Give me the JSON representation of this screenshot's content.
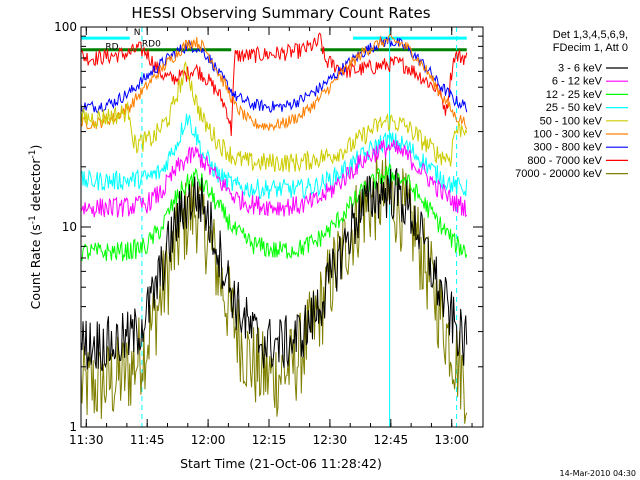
{
  "chart_data": {
    "type": "line",
    "title": "HESSI Observing Summary Count Rates",
    "xlabel": "Start Time (21-Oct-06 11:28:42)",
    "ylabel_main": "Count Rate (s",
    "ylabel_exp": "-1",
    "ylabel_mid": " detector",
    "ylabel_exp2": "-1",
    "ylabel_end": ")",
    "yscale": "log",
    "ylim": [
      1,
      100
    ],
    "xlim_minutes": [
      0,
      99
    ],
    "x_tick_labels": [
      "11:30",
      "11:45",
      "12:00",
      "12:15",
      "12:30",
      "12:45",
      "13:00"
    ],
    "x_tick_minutes": [
      1.3,
      16.3,
      31.3,
      46.3,
      61.3,
      76.3,
      91.3
    ],
    "y_tick_labels": [
      "1",
      "10",
      "100"
    ],
    "y_tick_values": [
      1,
      10,
      100
    ],
    "legend_header": [
      "Det 1,3,4,5,6,9,",
      "FDecim 1, Att 0"
    ],
    "legend_placement": "right",
    "grid": false,
    "annotations": [
      {
        "text": "RD0",
        "minute": 15,
        "value": 80
      },
      {
        "text": "RD",
        "minute": 6,
        "value": 77
      },
      {
        "text": "N",
        "minute": 13,
        "value": 91
      }
    ],
    "timestamp": "14-Mar-2010 04:30",
    "series": [
      {
        "name": "3 - 6 keV",
        "color": "#000000",
        "x": [
          0,
          5,
          8,
          10,
          12,
          14,
          16,
          18,
          20,
          22,
          24,
          26,
          28,
          29,
          30,
          32,
          34,
          36,
          38,
          40,
          42,
          44,
          46,
          48,
          50,
          52,
          54,
          56,
          58,
          60,
          62,
          64,
          66,
          68,
          70,
          72,
          74,
          76,
          78,
          80,
          82,
          84,
          86,
          88,
          90,
          92,
          94,
          95
        ],
        "values": [
          2.6,
          2.6,
          2.6,
          2.7,
          2.8,
          3.0,
          3.6,
          4.6,
          6.2,
          8.5,
          11.0,
          13.0,
          14.3,
          14.0,
          13.0,
          10.0,
          7.5,
          5.5,
          4.2,
          3.5,
          3.0,
          2.7,
          2.6,
          2.6,
          2.6,
          2.7,
          2.9,
          3.2,
          3.8,
          4.6,
          5.8,
          7.3,
          9.2,
          11.3,
          13.0,
          14.3,
          15.0,
          15.0,
          14.5,
          13.0,
          11.0,
          8.5,
          6.5,
          5.0,
          4.0,
          3.2,
          2.7,
          2.6
        ]
      },
      {
        "name": "6 - 12 keV",
        "color": "#ff00ff",
        "x": [
          0,
          8,
          12,
          16,
          20,
          24,
          28,
          30,
          34,
          38,
          42,
          48,
          54,
          58,
          62,
          66,
          70,
          74,
          76,
          80,
          84,
          88,
          92,
          95
        ],
        "values": [
          12.5,
          12.5,
          12.6,
          13.0,
          15.0,
          20.0,
          23.5,
          21.5,
          17.0,
          14.0,
          13.0,
          12.6,
          12.8,
          13.5,
          15.5,
          18.5,
          22.0,
          24.5,
          25.0,
          23.0,
          19.0,
          15.5,
          13.2,
          12.5
        ]
      },
      {
        "name": "12 - 25 keV",
        "color": "#00ff00",
        "x": [
          0,
          8,
          12,
          16,
          20,
          24,
          28,
          30,
          34,
          38,
          42,
          48,
          54,
          58,
          62,
          66,
          70,
          74,
          76,
          80,
          84,
          88,
          92,
          95
        ],
        "values": [
          7.5,
          7.5,
          7.6,
          8.0,
          10.0,
          14.5,
          18.0,
          16.5,
          12.5,
          9.5,
          8.2,
          7.6,
          7.8,
          8.5,
          10.0,
          12.5,
          15.5,
          18.0,
          18.5,
          17.0,
          13.5,
          10.5,
          8.3,
          7.5
        ]
      },
      {
        "name": "25 - 50 keV",
        "color": "#00ffff",
        "x": [
          0,
          8,
          12,
          16,
          20,
          24,
          26,
          28,
          30,
          34,
          38,
          42,
          48,
          54,
          58,
          62,
          66,
          70,
          74,
          76,
          80,
          84,
          88,
          92,
          95
        ],
        "values": [
          17.0,
          17.0,
          17.2,
          17.5,
          19.0,
          27.0,
          36.0,
          30.0,
          23.0,
          18.0,
          16.0,
          15.5,
          15.5,
          15.5,
          16.0,
          17.5,
          20.0,
          23.0,
          26.5,
          27.0,
          25.5,
          21.5,
          18.0,
          16.0,
          15.5
        ]
      },
      {
        "name": "50 - 100 keV",
        "color": "#cccc00",
        "x": [
          0,
          4,
          8,
          12,
          13,
          14,
          18,
          22,
          25,
          26,
          28,
          30,
          34,
          38,
          42,
          46,
          50,
          54,
          58,
          62,
          66,
          70,
          74,
          76,
          80,
          84,
          88,
          91,
          92,
          95
        ],
        "values": [
          35,
          35,
          36,
          38,
          26,
          26,
          28,
          36,
          55,
          62,
          44,
          34,
          26,
          22,
          21,
          21,
          21,
          21,
          22,
          23,
          25,
          29,
          33,
          34,
          32,
          27,
          23,
          22,
          30,
          32
        ]
      },
      {
        "name": "100 - 300 keV",
        "color": "#ff8000",
        "x": [
          0,
          4,
          8,
          12,
          16,
          20,
          24,
          26,
          28,
          30,
          32,
          34,
          38,
          42,
          46,
          50,
          54,
          58,
          62,
          66,
          70,
          74,
          76,
          78,
          80,
          84,
          88,
          92,
          95
        ],
        "values": [
          33,
          33,
          35,
          40,
          50,
          62,
          75,
          82,
          85,
          80,
          70,
          58,
          40,
          33,
          32,
          33,
          36,
          42,
          52,
          64,
          76,
          84,
          86,
          84,
          80,
          65,
          48,
          36,
          33
        ]
      },
      {
        "name": "300 - 800 keV",
        "color": "#0000ff",
        "x": [
          0,
          4,
          8,
          12,
          16,
          20,
          24,
          26,
          28,
          30,
          32,
          34,
          38,
          42,
          46,
          50,
          54,
          58,
          62,
          66,
          70,
          74,
          76,
          78,
          80,
          84,
          88,
          92,
          95
        ],
        "values": [
          40,
          40,
          42,
          47,
          56,
          66,
          76,
          80,
          80,
          76,
          68,
          58,
          45,
          41,
          40,
          40,
          43,
          48,
          56,
          66,
          76,
          84,
          85,
          83,
          79,
          66,
          52,
          43,
          40
        ]
      },
      {
        "name": "800 - 7000 keV",
        "color": "#ff0000",
        "x": [
          0,
          2,
          4,
          8,
          12,
          14,
          16,
          18,
          20,
          22,
          24,
          26,
          28,
          30,
          32,
          34,
          36,
          37,
          38,
          42,
          46,
          50,
          54,
          58,
          59,
          60,
          62,
          64,
          66,
          70,
          74,
          78,
          80,
          82,
          84,
          88,
          90,
          92,
          95
        ],
        "values": [
          72,
          70,
          70,
          72,
          74,
          78,
          75,
          65,
          58,
          55,
          56,
          58,
          62,
          58,
          52,
          46,
          38,
          30,
          72,
          72,
          73,
          74,
          76,
          82,
          88,
          68,
          65,
          62,
          60,
          62,
          64,
          66,
          64,
          60,
          56,
          48,
          38,
          72,
          70
        ]
      },
      {
        "name": "7000 - 20000 keV",
        "color": "#808000",
        "x": [
          0,
          4,
          8,
          12,
          14,
          16,
          18,
          20,
          22,
          24,
          26,
          28,
          29,
          30,
          32,
          34,
          36,
          38,
          40,
          42,
          44,
          46,
          48,
          50,
          52,
          54,
          56,
          58,
          60,
          62,
          64,
          66,
          68,
          70,
          72,
          74,
          76,
          78,
          80,
          82,
          84,
          86,
          88,
          90,
          92,
          94,
          95
        ],
        "values": [
          1.6,
          1.6,
          1.7,
          1.9,
          2.2,
          2.6,
          3.4,
          4.6,
          6.4,
          8.8,
          11.0,
          12.3,
          12.0,
          10.5,
          8.0,
          5.8,
          4.2,
          3.2,
          2.5,
          2.1,
          1.9,
          1.8,
          1.8,
          1.9,
          2.0,
          2.3,
          2.8,
          3.5,
          4.4,
          5.7,
          7.2,
          9.0,
          11.0,
          12.5,
          13.5,
          14.0,
          13.8,
          13.0,
          11.5,
          9.5,
          7.2,
          5.4,
          4.0,
          3.0,
          2.3,
          1.8,
          1.6
        ]
      }
    ],
    "reference_lines": [
      {
        "kind": "level",
        "color": "#008000",
        "value": 77,
        "segments": [
          [
            0,
            37
          ],
          [
            59,
            95
          ]
        ]
      },
      {
        "kind": "level",
        "color": "#00ffff",
        "value": 88,
        "segments": [
          [
            0,
            12
          ],
          [
            67,
            95
          ]
        ]
      },
      {
        "kind": "vertical-dashed",
        "color": "#00ffff",
        "minute": 15
      },
      {
        "kind": "vertical-dashed",
        "color": "#00ffff",
        "minute": 92.5
      },
      {
        "kind": "vertical-solid",
        "color": "#00ffff",
        "minute": 76
      }
    ]
  }
}
